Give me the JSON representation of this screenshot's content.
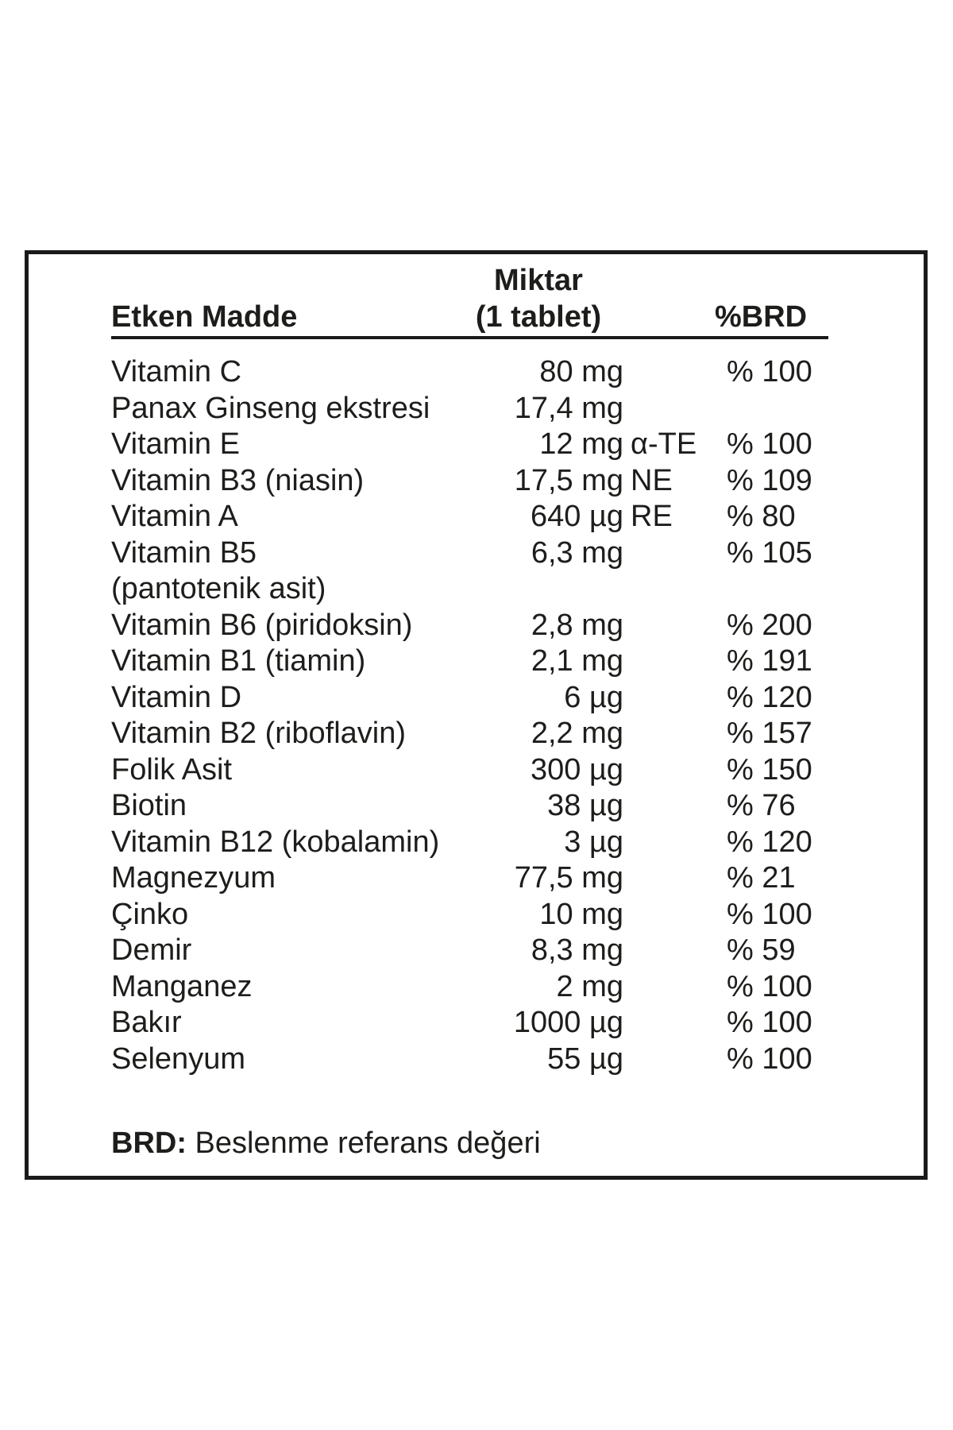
{
  "colors": {
    "background": "#ffffff",
    "text": "#1d1d1b",
    "border": "#1a1a1a"
  },
  "table": {
    "headers": {
      "col1": "Etken Madde",
      "col2_line1": "Miktar",
      "col2_line2": "(1 tablet)",
      "col3": "%BRD"
    },
    "rows": [
      {
        "name": "Vitamin C",
        "name2": "",
        "amount": "80 mg",
        "suffix": "",
        "brd": "% 100"
      },
      {
        "name": "Panax Ginseng ekstresi",
        "name2": "",
        "amount": "17,4 mg",
        "suffix": "",
        "brd": ""
      },
      {
        "name": "Vitamin E",
        "name2": "",
        "amount": "12 mg",
        "suffix": "α-TE",
        "brd": "% 100"
      },
      {
        "name": "Vitamin B3 (niasin)",
        "name2": "",
        "amount": "17,5 mg",
        "suffix": "NE",
        "brd": "% 109"
      },
      {
        "name": "Vitamin A",
        "name2": "",
        "amount": "640 µg",
        "suffix": "RE",
        "brd": "% 80"
      },
      {
        "name": "Vitamin B5",
        "name2": "(pantotenik asit)",
        "amount": "6,3 mg",
        "suffix": "",
        "brd": "% 105"
      },
      {
        "name": "Vitamin B6 (piridoksin)",
        "name2": "",
        "amount": "2,8 mg",
        "suffix": "",
        "brd": "% 200"
      },
      {
        "name": "Vitamin B1 (tiamin)",
        "name2": "",
        "amount": "2,1 mg",
        "suffix": "",
        "brd": "% 191"
      },
      {
        "name": "Vitamin D",
        "name2": "",
        "amount": "6 µg",
        "suffix": "",
        "brd": "% 120"
      },
      {
        "name": "Vitamin B2 (riboflavin)",
        "name2": "",
        "amount": "2,2 mg",
        "suffix": "",
        "brd": "% 157"
      },
      {
        "name": "Folik Asit",
        "name2": "",
        "amount": "300 µg",
        "suffix": "",
        "brd": "% 150"
      },
      {
        "name": "Biotin",
        "name2": "",
        "amount": "38 µg",
        "suffix": "",
        "brd": "% 76"
      },
      {
        "name": "Vitamin B12 (kobalamin)",
        "name2": "",
        "amount": "3 µg",
        "suffix": "",
        "brd": "% 120"
      },
      {
        "name": "Magnezyum",
        "name2": "",
        "amount": "77,5 mg",
        "suffix": "",
        "brd": "% 21"
      },
      {
        "name": "Çinko",
        "name2": "",
        "amount": "10 mg",
        "suffix": "",
        "brd": "% 100"
      },
      {
        "name": "Demir",
        "name2": "",
        "amount": "8,3 mg",
        "suffix": "",
        "brd": "% 59"
      },
      {
        "name": "Manganez",
        "name2": "",
        "amount": "2 mg",
        "suffix": "",
        "brd": "% 100"
      },
      {
        "name": "Bakır",
        "name2": "",
        "amount": "1000 µg",
        "suffix": "",
        "brd": "% 100"
      },
      {
        "name": "Selenyum",
        "name2": "",
        "amount": "55 µg",
        "suffix": "",
        "brd": "% 100"
      }
    ],
    "footnote": {
      "label": "BRD:",
      "text": " Beslenme referans değeri"
    }
  }
}
